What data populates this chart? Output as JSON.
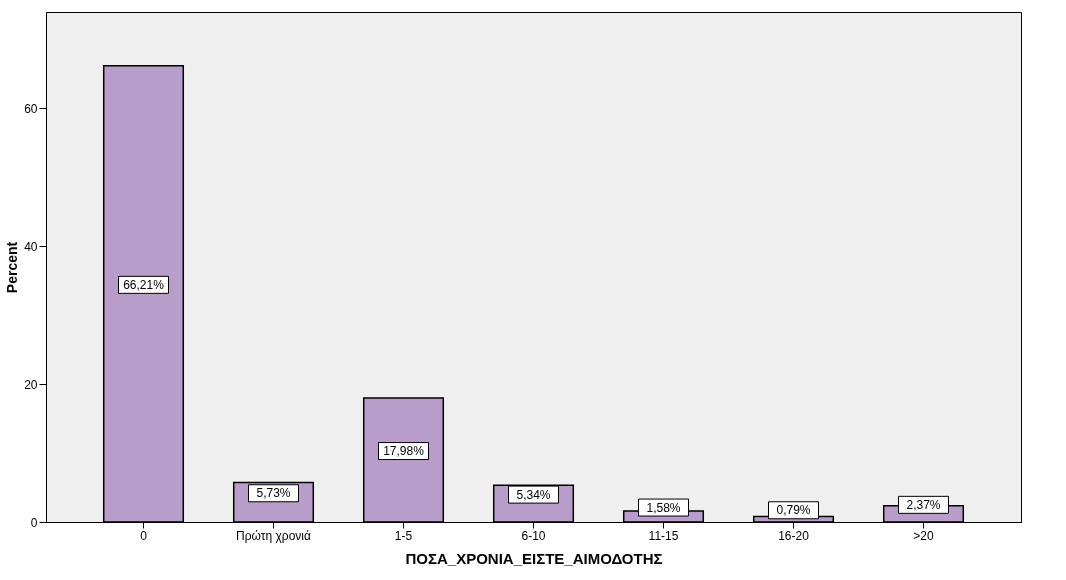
{
  "chart_data": {
    "type": "bar",
    "xlabel": "ΠΟΣΑ_ΧΡΟΝΙΑ_ΕΙΣΤΕ_ΑΙΜΟΔΟΤΗΣ",
    "ylabel": "Percent",
    "categories": [
      "0",
      "Πρώτη χρονιά",
      "1-5",
      "6-10",
      "11-15",
      "16-20",
      ">20"
    ],
    "values": [
      66.21,
      5.73,
      17.98,
      5.34,
      1.58,
      0.79,
      2.37
    ],
    "value_labels": [
      "66,21%",
      "5,73%",
      "17,98%",
      "5,34%",
      "1,58%",
      "0,79%",
      "2,37%"
    ],
    "color": "#b89cc9",
    "ylim": [
      0,
      74
    ],
    "yticks": [
      0,
      20,
      40,
      60
    ],
    "grid": false,
    "legend": false
  }
}
